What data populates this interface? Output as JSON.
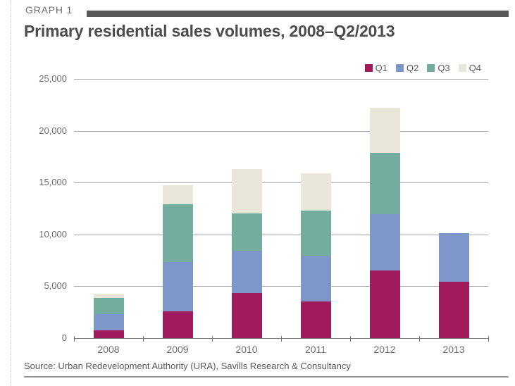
{
  "page": {
    "graph_label": "GRAPH 1",
    "title": "Primary residential sales volumes, 2008–Q2/2013",
    "source": "Source: Urban Redevelopment Authority (URA), Savills Research & Consultancy"
  },
  "colors": {
    "header_bar": "#58595b",
    "title_text": "#4c4c4e",
    "label_text": "#6d6e71",
    "gridline": "#a7a9ac",
    "axis": "#77787b",
    "q1": "#a01b5b",
    "q2": "#7d97cb",
    "q3": "#74ad9e",
    "q4": "#eae6da"
  },
  "chart_data": {
    "type": "bar",
    "stacked": true,
    "title": "Primary residential sales volumes, 2008–Q2/2013",
    "categories": [
      "2008",
      "2009",
      "2010",
      "2011",
      "2012",
      "2013"
    ],
    "series": [
      {
        "name": "Q1",
        "color": "#a01b5b",
        "values": [
          760,
          2600,
          4380,
          3540,
          6530,
          5410
        ]
      },
      {
        "name": "Q2",
        "color": "#7d97cb",
        "values": [
          1550,
          4710,
          4030,
          4440,
          5400,
          4700
        ]
      },
      {
        "name": "Q3",
        "color": "#74ad9e",
        "values": [
          1560,
          5580,
          3640,
          4320,
          5920,
          0
        ]
      },
      {
        "name": "Q4",
        "color": "#eae6da",
        "values": [
          420,
          1860,
          4240,
          3600,
          4350,
          0
        ]
      }
    ],
    "totals": [
      4290,
      14750,
      16290,
      15900,
      22200,
      10110
    ],
    "xlabel": "",
    "ylabel": "",
    "ylim": [
      0,
      25000
    ],
    "ytick_labels": [
      "0",
      "5,000",
      "10,000",
      "15,000",
      "20,000",
      "25,000"
    ],
    "grid": "horizontal",
    "legend_position": "top-right"
  }
}
